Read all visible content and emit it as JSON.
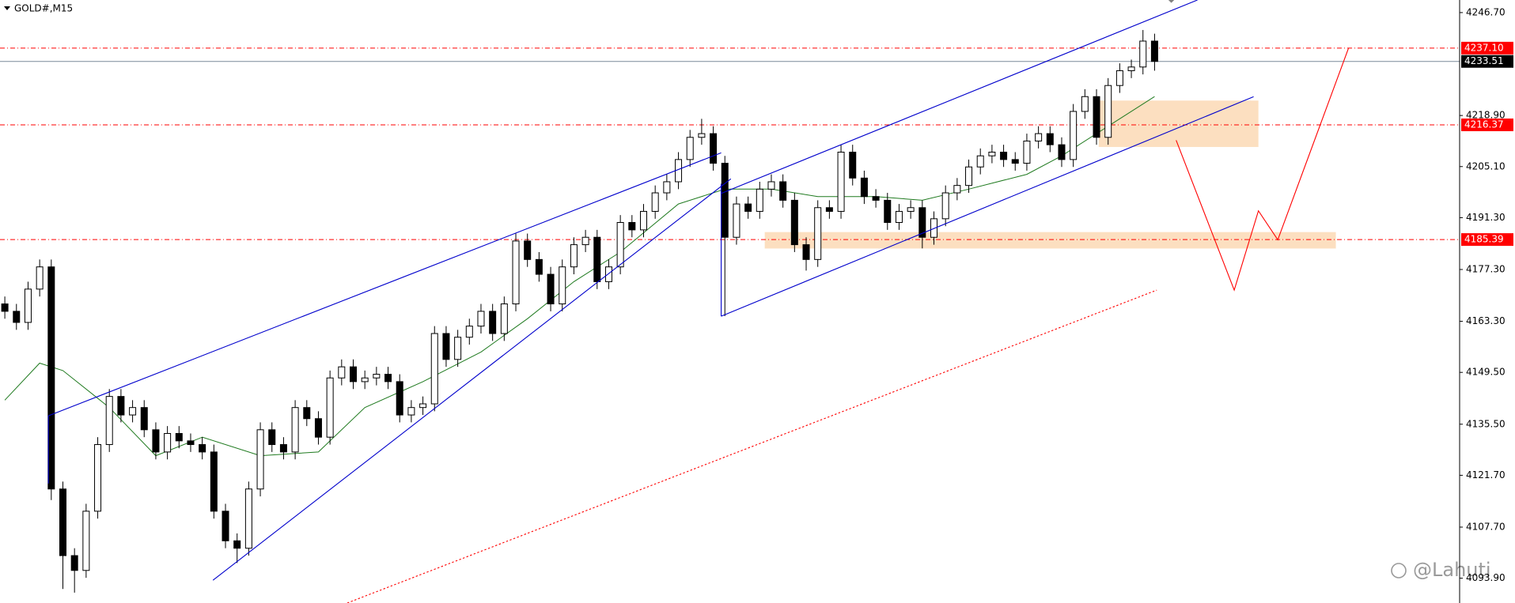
{
  "chart_data": {
    "type": "candlestick",
    "title": "GOLD#,M15",
    "open": [
      4168,
      4166,
      4163,
      4172,
      4178,
      4118,
      4100,
      4096,
      4112,
      4130,
      4143,
      4138,
      4140,
      4134,
      4128,
      4133,
      4131,
      4130,
      4128,
      4112,
      4104,
      4102,
      4118,
      4134,
      4130,
      4128,
      4140,
      4137,
      4132,
      4148,
      4151,
      4147,
      4148,
      4149,
      4147,
      4138,
      4140,
      4141,
      4160,
      4153,
      4159,
      4162,
      4166,
      4160,
      4168,
      4185,
      4180,
      4176,
      4168,
      4178,
      4184,
      4186,
      4174,
      4178,
      4190,
      4188,
      4193,
      4198,
      4201,
      4207,
      4213,
      4214,
      4206,
      4186,
      4195,
      4193,
      4199,
      4201,
      4196,
      4184,
      4180,
      4194,
      4193,
      4209,
      4202,
      4197,
      4196,
      4190,
      4193,
      4194,
      4186,
      4191,
      4198,
      4200,
      4205,
      4208,
      4209,
      4207,
      4206,
      4212,
      4214,
      4211,
      4207,
      4220,
      4224,
      4213,
      4227,
      4231,
      4232,
      4239
    ],
    "high": [
      4170,
      4168,
      4174,
      4180,
      4180,
      4120,
      4102,
      4114,
      4132,
      4145,
      4145,
      4142,
      4142,
      4136,
      4135,
      4135,
      4133,
      4132,
      4130,
      4114,
      4106,
      4120,
      4136,
      4136,
      4132,
      4142,
      4142,
      4139,
      4150,
      4153,
      4153,
      4150,
      4151,
      4151,
      4149,
      4142,
      4143,
      4162,
      4162,
      4161,
      4164,
      4168,
      4168,
      4170,
      4187,
      4187,
      4182,
      4178,
      4180,
      4186,
      4188,
      4188,
      4180,
      4192,
      4192,
      4195,
      4200,
      4203,
      4209,
      4215,
      4218,
      4216,
      4208,
      4197,
      4197,
      4201,
      4203,
      4203,
      4198,
      4186,
      4196,
      4196,
      4211,
      4211,
      4204,
      4199,
      4198,
      4195,
      4196,
      4196,
      4193,
      4200,
      4202,
      4207,
      4210,
      4211,
      4211,
      4209,
      4214,
      4216,
      4216,
      4213,
      4222,
      4226,
      4226,
      4229,
      4233,
      4234,
      4242,
      4241
    ],
    "low": [
      4164,
      4161,
      4161,
      4170,
      4115,
      4091,
      4090,
      4094,
      4110,
      4128,
      4136,
      4136,
      4132,
      4126,
      4126,
      4129,
      4128,
      4126,
      4110,
      4102,
      4098,
      4100,
      4116,
      4128,
      4126,
      4126,
      4135,
      4130,
      4130,
      4146,
      4145,
      4145,
      4146,
      4145,
      4136,
      4136,
      4138,
      4139,
      4151,
      4151,
      4157,
      4160,
      4158,
      4158,
      4166,
      4178,
      4174,
      4166,
      4166,
      4176,
      4182,
      4172,
      4172,
      4176,
      4186,
      4186,
      4191,
      4196,
      4199,
      4205,
      4211,
      4204,
      4164.7,
      4184,
      4191,
      4191,
      4197,
      4194,
      4182,
      4177,
      4178,
      4191,
      4191,
      4200,
      4195,
      4194,
      4188,
      4188,
      4191,
      4183,
      4184,
      4189,
      4196,
      4198,
      4203,
      4206,
      4205,
      4204,
      4204,
      4210,
      4209,
      4205,
      4205,
      4218,
      4211,
      4211,
      4225,
      4229,
      4230,
      4231
    ],
    "close": [
      4166,
      4163,
      4172,
      4178,
      4118,
      4100,
      4096,
      4112,
      4130,
      4143,
      4138,
      4140,
      4134,
      4128,
      4133,
      4131,
      4130,
      4128,
      4112,
      4104,
      4102,
      4118,
      4134,
      4130,
      4128,
      4140,
      4137,
      4132,
      4148,
      4151,
      4147,
      4148,
      4149,
      4147,
      4138,
      4140,
      4141,
      4160,
      4153,
      4159,
      4162,
      4166,
      4160,
      4168,
      4185,
      4180,
      4176,
      4168,
      4178,
      4184,
      4186,
      4174,
      4178,
      4190,
      4188,
      4193,
      4198,
      4201,
      4207,
      4213,
      4214,
      4206,
      4186,
      4195,
      4193,
      4199,
      4201,
      4196,
      4184,
      4180,
      4194,
      4193,
      4209,
      4202,
      4197,
      4196,
      4190,
      4193,
      4194,
      4186,
      4191,
      4198,
      4200,
      4205,
      4208,
      4209,
      4207,
      4206,
      4212,
      4214,
      4211,
      4207,
      4220,
      4224,
      4213,
      4227,
      4231,
      4232,
      4239,
      4233.51
    ],
    "up_color": "#ffffff",
    "down_color": "#000000",
    "moving_average": {
      "color": "#1f7a1f",
      "x": [
        0,
        3,
        5,
        9,
        13,
        17,
        22,
        27,
        31,
        36,
        41,
        45,
        49,
        53,
        58,
        62,
        66,
        70,
        75,
        79,
        83,
        88,
        91,
        95,
        99
      ],
      "values": [
        4142,
        4152,
        4150,
        4140,
        4127,
        4132,
        4127,
        4128,
        4140,
        4147,
        4155,
        4164,
        4174,
        4182,
        4195,
        4199,
        4199,
        4197,
        4197,
        4196,
        4199,
        4203,
        4208,
        4216,
        4224
      ]
    },
    "ylim": [
      4087.2,
      4250.1
    ],
    "yticks": [
      {
        "value": 4246.7,
        "label": "4246.70"
      },
      {
        "value": 4218.9,
        "label": "4218.90"
      },
      {
        "value": 4205.1,
        "label": "4205.10"
      },
      {
        "value": 4191.3,
        "label": "4191.30"
      },
      {
        "value": 4177.3,
        "label": "4177.30"
      },
      {
        "value": 4163.3,
        "label": "4163.30"
      },
      {
        "value": 4149.5,
        "label": "4149.50"
      },
      {
        "value": 4135.5,
        "label": "4135.50"
      },
      {
        "value": 4121.7,
        "label": "4121.70"
      },
      {
        "value": 4107.7,
        "label": "4107.70"
      },
      {
        "value": 4093.9,
        "label": "4093.90"
      }
    ],
    "levels": [
      {
        "value": 4237.1,
        "label": "4237.10"
      },
      4216.37,
      4185.39
    ],
    "level_color": "#ff0000",
    "last_price": 4233.51,
    "watermark": "@Lahuti"
  }
}
